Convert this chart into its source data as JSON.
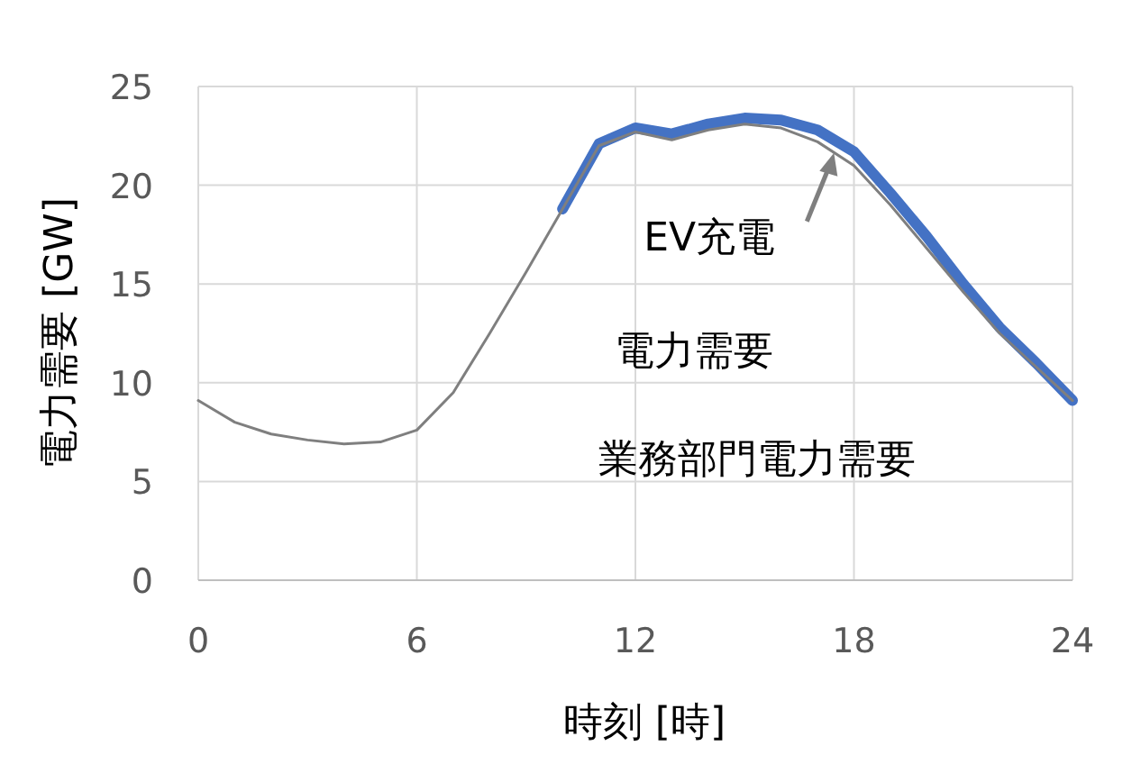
{
  "chart_data": {
    "type": "line",
    "xlabel": "時刻 [時]",
    "ylabel": "電力需要 [GW]",
    "x": [
      0,
      1,
      2,
      3,
      4,
      5,
      6,
      7,
      8,
      9,
      10,
      11,
      12,
      13,
      14,
      15,
      16,
      17,
      18,
      19,
      20,
      21,
      22,
      23,
      24
    ],
    "series": [
      {
        "color": "#7f7f7f",
        "values": [
          9.1,
          8.0,
          7.4,
          7.1,
          6.9,
          7.0,
          7.6,
          9.5,
          12.5,
          15.6,
          18.8,
          22.0,
          22.7,
          22.3,
          22.8,
          23.1,
          22.9,
          22.2,
          21.0,
          19.0,
          16.8,
          14.6,
          12.5,
          10.8,
          9.1
        ]
      },
      {
        "color": "#4472c4",
        "values": [
          null,
          null,
          null,
          null,
          null,
          null,
          null,
          null,
          null,
          null,
          18.8,
          22.1,
          22.9,
          22.6,
          23.1,
          23.4,
          23.3,
          22.8,
          21.7,
          19.6,
          17.4,
          15.0,
          12.8,
          11.0,
          9.1
        ]
      }
    ],
    "xlim": [
      0,
      24
    ],
    "xticks": [
      0,
      6,
      12,
      18,
      24
    ],
    "ylim": [
      0,
      25
    ],
    "yticks": [
      0,
      5,
      10,
      15,
      20,
      25
    ],
    "grid": true,
    "annotations": [
      {
        "text": "EV充電",
        "x": 17.5,
        "y": 22.0
      },
      "電力需要",
      "業務部門電力需要"
    ]
  }
}
